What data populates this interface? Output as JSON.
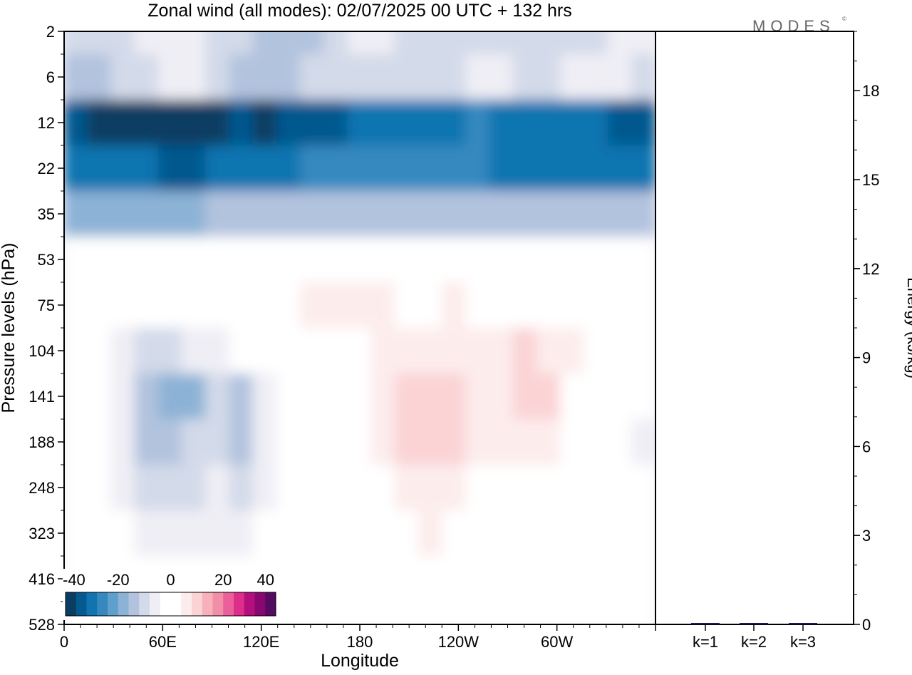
{
  "title": "Zonal wind (all modes):  02/07/2025  00 UTC  + 132 hrs",
  "logo_text": "MODES",
  "logo_mark": "©",
  "chart_data": [
    {
      "type": "heatmap",
      "title": "Zonal wind (all modes):  02/07/2025  00 UTC  + 132 hrs",
      "xlabel": "Longitude",
      "ylabel": "Pressure levels (hPa)",
      "x_ticks": [
        "0",
        "60E",
        "120E",
        "180",
        "120W",
        "60W"
      ],
      "x_range_deg": [
        0,
        360
      ],
      "y_ticks": [
        "2",
        "6",
        "12",
        "22",
        "35",
        "53",
        "75",
        "104",
        "141",
        "188",
        "248",
        "323",
        "416",
        "528"
      ],
      "colorbar": {
        "labels": [
          "-40",
          "-20",
          "0",
          "20",
          "40"
        ],
        "range": [
          -40,
          40
        ],
        "colors": [
          "#0a3d62",
          "#06598f",
          "#1174b0",
          "#3689bf",
          "#5f9fcb",
          "#8cb2d6",
          "#b2c3de",
          "#d3dae9",
          "#efeef5",
          "#ffffff",
          "#ffffff",
          "#fdecec",
          "#fbd3d5",
          "#f7b1ba",
          "#f28fa8",
          "#eb5f9a",
          "#dc2e8a",
          "#b50f7d",
          "#88086f",
          "#560b63"
        ]
      },
      "fields": [
        {
          "row": 0,
          "values": [
            -12,
            -12,
            -10,
            -8,
            -6,
            -6,
            -10,
            -12,
            -14,
            -16,
            -14,
            -10,
            -8,
            -8,
            -10,
            -12,
            -12,
            -10,
            -10,
            -12,
            -12,
            -10,
            -10,
            -8,
            -8
          ]
        },
        {
          "row": 1,
          "values": [
            -14,
            -14,
            -12,
            -10,
            -8,
            -8,
            -12,
            -14,
            -14,
            -14,
            -12,
            -10,
            -10,
            -12,
            -12,
            -12,
            -10,
            -8,
            -8,
            -10,
            -10,
            -8,
            -8,
            -8,
            -10
          ]
        },
        {
          "row": 2,
          "values": [
            -36,
            -37,
            -37,
            -38,
            -38,
            -37,
            -38,
            -36,
            -38,
            -36,
            -36,
            -34,
            -32,
            -32,
            -30,
            -30,
            -30,
            -28,
            -32,
            -32,
            -30,
            -30,
            -30,
            -34,
            -36
          ]
        },
        {
          "row": 3,
          "values": [
            -30,
            -31,
            -32,
            -32,
            -34,
            -34,
            -32,
            -32,
            -30,
            -29,
            -28,
            -28,
            -26,
            -26,
            -25,
            -26,
            -28,
            -28,
            -30,
            -30,
            -30,
            -31,
            -32,
            -32,
            -30
          ]
        },
        {
          "row": 4,
          "values": [
            -18,
            -18,
            -18,
            -18,
            -18,
            -17,
            -16,
            -16,
            -16,
            -16,
            -16,
            -15,
            -14,
            -14,
            -14,
            -14,
            -14,
            -14,
            -14,
            -14,
            -15,
            -16,
            -16,
            -16,
            -16
          ]
        },
        {
          "row": 5,
          "values": [
            -2,
            -3,
            -4,
            -3,
            -3,
            -2,
            -1,
            0,
            1,
            1,
            1,
            1,
            0,
            0,
            0,
            0,
            1,
            0,
            0,
            0,
            1,
            0,
            -1,
            -2,
            -2
          ]
        },
        {
          "row": 6,
          "values": [
            2,
            1,
            -1,
            -2,
            -2,
            -2,
            -1,
            0,
            2,
            2,
            4,
            5,
            6,
            4,
            2,
            3,
            4,
            3,
            2,
            1,
            1,
            1,
            0,
            -1,
            1
          ]
        },
        {
          "row": 7,
          "values": [
            -1,
            -2,
            -6,
            -12,
            -10,
            -8,
            -8,
            -4,
            -2,
            0,
            1,
            2,
            3,
            4,
            5,
            6,
            5,
            4,
            6,
            8,
            6,
            4,
            0,
            -2,
            -4
          ]
        },
        {
          "row": 8,
          "values": [
            -2,
            -3,
            -8,
            -14,
            -20,
            -18,
            -10,
            -16,
            -8,
            -2,
            0,
            1,
            2,
            5,
            9,
            11,
            8,
            4,
            6,
            10,
            8,
            3,
            0,
            -2,
            -4
          ]
        },
        {
          "row": 9,
          "values": [
            -2,
            -3,
            -8,
            -14,
            -16,
            -12,
            -10,
            -14,
            -8,
            -2,
            0,
            1,
            2,
            5,
            8,
            10,
            9,
            5,
            4,
            5,
            4,
            2,
            0,
            -2,
            -6
          ]
        },
        {
          "row": 10,
          "values": [
            -2,
            -2,
            -5,
            -10,
            -12,
            -10,
            -8,
            -10,
            -6,
            -2,
            0,
            0,
            1,
            3,
            5,
            7,
            6,
            3,
            2,
            2,
            2,
            1,
            0,
            -2,
            -4
          ]
        },
        {
          "row": 11,
          "values": [
            -1,
            -2,
            -3,
            -6,
            -8,
            -6,
            -6,
            -8,
            -4,
            -2,
            -1,
            0,
            1,
            2,
            3,
            4,
            3,
            2,
            1,
            1,
            0,
            0,
            -1,
            -2,
            -4
          ]
        },
        {
          "row": 12,
          "values": [
            -1,
            -1,
            -2,
            -3,
            -4,
            -3,
            -3,
            -4,
            -2,
            -1,
            -1,
            0,
            0,
            1,
            1,
            2,
            1,
            1,
            0,
            0,
            0,
            -1,
            -1,
            -2,
            -3
          ]
        },
        {
          "row": 13,
          "values": [
            0,
            0,
            -1,
            -2,
            -2,
            -2,
            -2,
            -2,
            -1,
            -1,
            -1,
            -1,
            0,
            0,
            1,
            1,
            1,
            0,
            0,
            0,
            -1,
            -1,
            -1,
            -2,
            -2
          ]
        }
      ]
    },
    {
      "type": "bar",
      "ylabel": "Energy (kJ/kg)",
      "categories": [
        "k=1",
        "k=2",
        "k=3"
      ],
      "values": [
        0.04,
        0.02,
        0.02
      ],
      "ylim": [
        0,
        20
      ],
      "y_ticks": [
        "0",
        "3",
        "6",
        "9",
        "12",
        "15",
        "18"
      ]
    }
  ]
}
